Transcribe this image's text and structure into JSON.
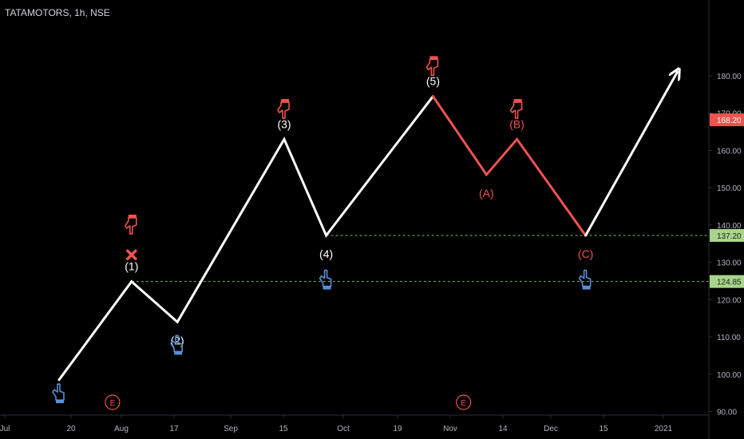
{
  "symbol": "TATAMOTORS, 1h, NSE",
  "colors": {
    "background": "#000000",
    "impulse": "#ffffff",
    "correction": "#ef5350",
    "up_hand": "#5b8fd6",
    "down_hand": "#ef5350",
    "level_line": "#6fbf73",
    "axis_text": "#b2b5be",
    "axis_line": "#2a2e39",
    "last_price_badge": "#ef5350",
    "level_badge": "#a8d58b"
  },
  "chart_data": {
    "type": "line",
    "title": "TATAMOTORS, 1h, NSE",
    "y_axis": {
      "ylim": [
        90,
        185
      ],
      "ticks": [
        "90.00",
        "100.00",
        "110.00",
        "120.00",
        "130.00",
        "140.00",
        "150.00",
        "160.00",
        "170.00",
        "180.00"
      ],
      "position": "right"
    },
    "x_axis": {
      "ticks": [
        "Jul",
        "20",
        "Aug",
        "17",
        "Sep",
        "15",
        "Oct",
        "19",
        "Nov",
        "14",
        "Dec",
        "15",
        "2021"
      ]
    },
    "grid": false,
    "series": [
      {
        "role": "impulse",
        "points": [
          {
            "date": "2020-07-17",
            "y": 98.5
          },
          {
            "date": "2020-08-05",
            "y": 124.85
          },
          {
            "date": "2020-08-17",
            "y": 114
          },
          {
            "date": "2020-09-14",
            "y": 163
          },
          {
            "date": "2020-09-25",
            "y": 137.2
          },
          {
            "date": "2020-10-23",
            "y": 174.5
          }
        ]
      },
      {
        "role": "correction",
        "points": [
          {
            "date": "2020-10-23",
            "y": 174.5
          },
          {
            "date": "2020-11-06",
            "y": 153.5
          },
          {
            "date": "2020-11-14",
            "y": 163
          },
          {
            "date": "2020-12-02",
            "y": 137.2
          }
        ]
      },
      {
        "role": "projection",
        "points": [
          {
            "date": "2020-12-02",
            "y": 137.2
          },
          {
            "date": "2020-12-26",
            "y": 181
          }
        ]
      }
    ],
    "wave_labels": [
      {
        "text": "(1)",
        "date": "2020-08-05",
        "y": 124.85,
        "color": "white",
        "pos": "above"
      },
      {
        "text": "(2)",
        "date": "2020-08-17",
        "y": 114,
        "color": "white",
        "pos": "below"
      },
      {
        "text": "(3)",
        "date": "2020-09-14",
        "y": 163,
        "color": "white",
        "pos": "above"
      },
      {
        "text": "(4)",
        "date": "2020-09-25",
        "y": 137.2,
        "color": "white",
        "pos": "below"
      },
      {
        "text": "(5)",
        "date": "2020-10-23",
        "y": 174.5,
        "color": "white",
        "pos": "above"
      },
      {
        "text": "(A)",
        "date": "2020-11-06",
        "y": 153.5,
        "color": "red",
        "pos": "below"
      },
      {
        "text": "(B)",
        "date": "2020-11-14",
        "y": 163,
        "color": "red",
        "pos": "above"
      },
      {
        "text": "(C)",
        "date": "2020-12-02",
        "y": 137.2,
        "color": "red",
        "pos": "below"
      }
    ],
    "horizontal_levels": [
      {
        "y": 137.2,
        "label": "137.20",
        "from_date": "2020-09-25"
      },
      {
        "y": 124.85,
        "label": "124.85",
        "from_date": "2020-08-05"
      }
    ],
    "last_price": {
      "y": 168.2,
      "label": "168.20"
    },
    "earnings_markers": [
      {
        "date": "2020-07-31",
        "text": "E"
      },
      {
        "date": "2020-10-31",
        "text": "E"
      }
    ],
    "annotations": [
      {
        "kind": "up-hand",
        "date": "2020-07-17",
        "y": 95
      },
      {
        "kind": "up-hand",
        "date": "2020-08-17",
        "y": 108
      },
      {
        "kind": "up-hand",
        "date": "2020-09-25",
        "y": 125.5
      },
      {
        "kind": "up-hand",
        "date": "2020-12-02",
        "y": 125.5
      },
      {
        "kind": "down-hand",
        "date": "2020-08-05",
        "y": 140
      },
      {
        "kind": "down-hand",
        "date": "2020-09-14",
        "y": 171
      },
      {
        "kind": "down-hand",
        "date": "2020-10-23",
        "y": 182.5
      },
      {
        "kind": "down-hand",
        "date": "2020-11-14",
        "y": 171
      },
      {
        "kind": "cross-mark",
        "date": "2020-08-05",
        "y": 132
      }
    ]
  }
}
